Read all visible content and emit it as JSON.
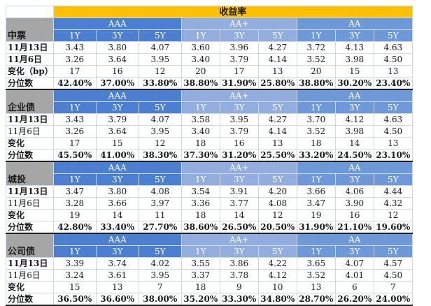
{
  "title": "收益率",
  "groups": [
    "AAA",
    "AA+",
    "AA"
  ],
  "tenors": [
    "1Y",
    "3Y",
    "5Y"
  ],
  "sections": [
    {
      "name": "中票",
      "rows": [
        {
          "label": "11月13日",
          "bold": true,
          "values": [
            "3.43",
            "3.80",
            "4.07",
            "3.60",
            "3.96",
            "4.27",
            "3.72",
            "4.13",
            "4.63"
          ]
        },
        {
          "label": "11月6日",
          "bold": true,
          "values": [
            "3.26",
            "3.64",
            "3.95",
            "3.40",
            "3.79",
            "4.14",
            "3.52",
            "3.98",
            "4.50"
          ]
        },
        {
          "label": "变化（bp）",
          "bold": true,
          "values": [
            "17",
            "16",
            "12",
            "20",
            "17",
            "13",
            "20",
            "15",
            "13"
          ]
        },
        {
          "label": "分位数",
          "bold": true,
          "values": [
            "42.40%",
            "37.00%",
            "33.80%",
            "38.80%",
            "31.90%",
            "25.80%",
            "38.80%",
            "30.20%",
            "23.40%"
          ]
        }
      ]
    },
    {
      "name": "企业债",
      "rows": [
        {
          "label": "11月13日",
          "bold": true,
          "values": [
            "3.43",
            "3.79",
            "4.07",
            "3.58",
            "3.95",
            "4.27",
            "3.70",
            "4.12",
            "4.63"
          ]
        },
        {
          "label": "11月6日",
          "bold": false,
          "values": [
            "3.26",
            "3.64",
            "3.95",
            "3.40",
            "3.79",
            "4.14",
            "3.52",
            "3.98",
            "4.50"
          ]
        },
        {
          "label": "变化",
          "bold": true,
          "values": [
            "17",
            "15",
            "12",
            "18",
            "16",
            "13",
            "18",
            "14",
            "13"
          ]
        },
        {
          "label": "分位数",
          "bold": true,
          "values": [
            "45.50%",
            "41.00%",
            "38.30%",
            "37.30%",
            "31.20%",
            "25.50%",
            "33.20%",
            "24.50%",
            "23.10%"
          ]
        }
      ]
    },
    {
      "name": "城投",
      "rows": [
        {
          "label": "11月13日",
          "bold": true,
          "values": [
            "3.47",
            "3.80",
            "4.08",
            "3.54",
            "3.91",
            "4.20",
            "3.66",
            "4.06",
            "4.44"
          ]
        },
        {
          "label": "11月6日",
          "bold": false,
          "values": [
            "3.28",
            "3.66",
            "3.97",
            "3.36",
            "3.77",
            "4.08",
            "3.47",
            "3.90",
            "4.32"
          ]
        },
        {
          "label": "变化",
          "bold": true,
          "values": [
            "19",
            "14",
            "11",
            "18",
            "14",
            "12",
            "19",
            "16",
            "12"
          ]
        },
        {
          "label": "分位数",
          "bold": true,
          "values": [
            "42.80%",
            "33.40%",
            "27.70%",
            "38.60%",
            "26.50%",
            "20.50%",
            "31.90%",
            "21.10%",
            "19.60%"
          ]
        }
      ]
    },
    {
      "name": "公司债",
      "rows": [
        {
          "label": "11月13日",
          "bold": true,
          "values": [
            "3.39",
            "3.74",
            "4.02",
            "3.55",
            "3.86",
            "4.22",
            "3.65",
            "4.07",
            "4.57"
          ]
        },
        {
          "label": "11月6日",
          "bold": false,
          "values": [
            "3.24",
            "3.61",
            "3.95",
            "3.37",
            "3.78",
            "4.12",
            "3.52",
            "4.01",
            "4.50"
          ]
        },
        {
          "label": "变化",
          "bold": true,
          "values": [
            "15",
            "13",
            "7",
            "18",
            "9",
            "10",
            "13",
            "6",
            "7"
          ]
        },
        {
          "label": "分位数",
          "bold": true,
          "values": [
            "36.50%",
            "36.60%",
            "38.00%",
            "35.20%",
            "33.30%",
            "34.80%",
            "28.70%",
            "26.20%",
            "24.00%"
          ]
        }
      ]
    }
  ]
}
